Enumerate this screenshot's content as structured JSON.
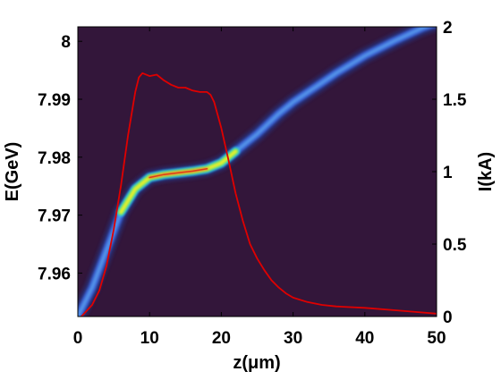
{
  "chart_data": {
    "type": "scatter",
    "xlabel": "z(μm)",
    "ylabel_left": "E(GeV)",
    "ylabel_right": "I(kA)",
    "xlim": [
      0,
      50
    ],
    "ylim_left": [
      7.9525,
      8.0025
    ],
    "ylim_right": [
      0,
      2
    ],
    "x_ticks": [
      0,
      10,
      20,
      30,
      40,
      50
    ],
    "y_left_ticks": [
      7.96,
      7.97,
      7.98,
      7.99,
      8
    ],
    "y_left_tick_labels": [
      "7.96",
      "7.97",
      "7.98",
      "7.99",
      "8"
    ],
    "y_right_ticks": [
      0,
      0.5,
      1,
      1.5,
      2
    ],
    "y_right_tick_labels": [
      "0",
      "0.5",
      "1",
      "1.5",
      "2"
    ],
    "grid": false,
    "background_color": "#33163a",
    "series": [
      {
        "role": "phase-space density (heatmap)",
        "axis": "left",
        "colormap": "jet",
        "centerline": {
          "x": [
            0,
            2,
            4,
            6,
            8,
            10,
            12,
            14,
            16,
            18,
            20,
            22,
            25,
            28,
            30,
            33,
            36,
            40,
            44,
            48,
            50
          ],
          "y": [
            7.9525,
            7.9575,
            7.964,
            7.9705,
            7.9745,
            7.9765,
            7.977,
            7.9773,
            7.9776,
            7.978,
            7.979,
            7.981,
            7.984,
            7.9875,
            7.9895,
            7.992,
            7.9945,
            7.9975,
            8.0,
            8.0023,
            8.0032
          ]
        }
      },
      {
        "role": "current profile",
        "axis": "right",
        "color": "#e00000",
        "x": [
          0.5,
          2,
          3,
          4,
          5,
          6,
          7,
          8,
          8.5,
          9,
          10,
          11,
          12,
          13,
          14,
          15,
          16,
          17,
          18,
          18.5,
          19,
          20,
          21,
          22,
          23,
          24,
          25,
          26,
          27,
          28,
          29,
          30,
          32,
          34,
          36,
          40,
          45,
          50
        ],
        "y": [
          0,
          0.08,
          0.18,
          0.35,
          0.6,
          0.9,
          1.25,
          1.55,
          1.65,
          1.68,
          1.66,
          1.67,
          1.63,
          1.6,
          1.58,
          1.58,
          1.56,
          1.55,
          1.55,
          1.53,
          1.48,
          1.3,
          1.08,
          0.85,
          0.66,
          0.5,
          0.4,
          0.32,
          0.25,
          0.2,
          0.16,
          0.13,
          0.1,
          0.08,
          0.07,
          0.06,
          0.04,
          0.02
        ]
      }
    ]
  }
}
